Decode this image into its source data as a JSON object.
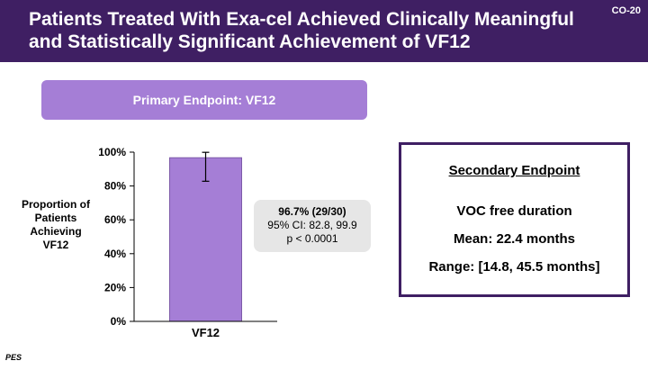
{
  "header": {
    "title": "Patients Treated With Exa-cel Achieved Clinically Meaningful and Statistically Significant Achievement of VF12",
    "slide_code": "CO-20"
  },
  "primary_endpoint_label": "Primary Endpoint: VF12",
  "callout": {
    "line1": "96.7% (29/30)",
    "line2": "95% CI: 82.8, 99.9",
    "line3": "p < 0.0001"
  },
  "secondary": {
    "title": "Secondary Endpoint",
    "line1": "VOC free duration",
    "line2": "Mean: 22.4 months",
    "line3": "Range: [14.8, 45.5 months]"
  },
  "footer": {
    "note": "PES"
  },
  "colors": {
    "header_bg": "#3f1f63",
    "accent": "#a57ed6",
    "bar": "#a57ed6"
  },
  "chart_data": {
    "type": "bar",
    "title": "",
    "xlabel": "",
    "ylabel": "Proportion of Patients Achieving VF12",
    "categories": [
      "VF12"
    ],
    "values": [
      96.7
    ],
    "error": {
      "lower": [
        82.8
      ],
      "upper": [
        99.9
      ]
    },
    "ylim": [
      0,
      100
    ],
    "yticks": [
      0,
      20,
      40,
      60,
      80,
      100
    ],
    "ytick_labels": [
      "0%",
      "20%",
      "40%",
      "60%",
      "80%",
      "100%"
    ],
    "grid": false
  }
}
